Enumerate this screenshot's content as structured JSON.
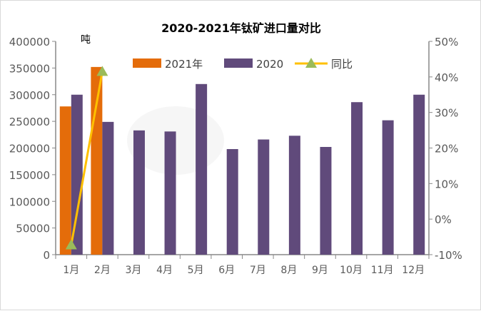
{
  "chart_data": {
    "type": "bar",
    "title": "2020-2021年钛矿进口量对比",
    "unit_label": "吨",
    "categories": [
      "1月",
      "2月",
      "3月",
      "4月",
      "5月",
      "6月",
      "7月",
      "8月",
      "9月",
      "10月",
      "11月",
      "12月"
    ],
    "ylim": [
      0,
      400000
    ],
    "yticks": [
      "0",
      "50000",
      "100000",
      "150000",
      "200000",
      "250000",
      "300000",
      "350000",
      "400000"
    ],
    "y2lim": [
      -10,
      50
    ],
    "y2ticks": [
      "-10%",
      "0%",
      "10%",
      "20%",
      "30%",
      "40%",
      "50%"
    ],
    "grid": false,
    "legend_position": "top",
    "series": [
      {
        "name": "2021年",
        "type": "bar",
        "color": "#E46C0A",
        "values": [
          278000,
          352000,
          null,
          null,
          null,
          null,
          null,
          null,
          null,
          null,
          null,
          null
        ]
      },
      {
        "name": "2020",
        "type": "bar",
        "color": "#604A7B",
        "values": [
          300000,
          249000,
          233000,
          231000,
          320000,
          198000,
          216000,
          223000,
          202000,
          286000,
          252000,
          300000
        ]
      },
      {
        "name": "同比",
        "type": "line",
        "axis": "right",
        "color": "#FFC000",
        "marker_color": "#9BBB59",
        "values": [
          -7.3,
          41.5,
          null,
          null,
          null,
          null,
          null,
          null,
          null,
          null,
          null,
          null
        ]
      }
    ]
  }
}
